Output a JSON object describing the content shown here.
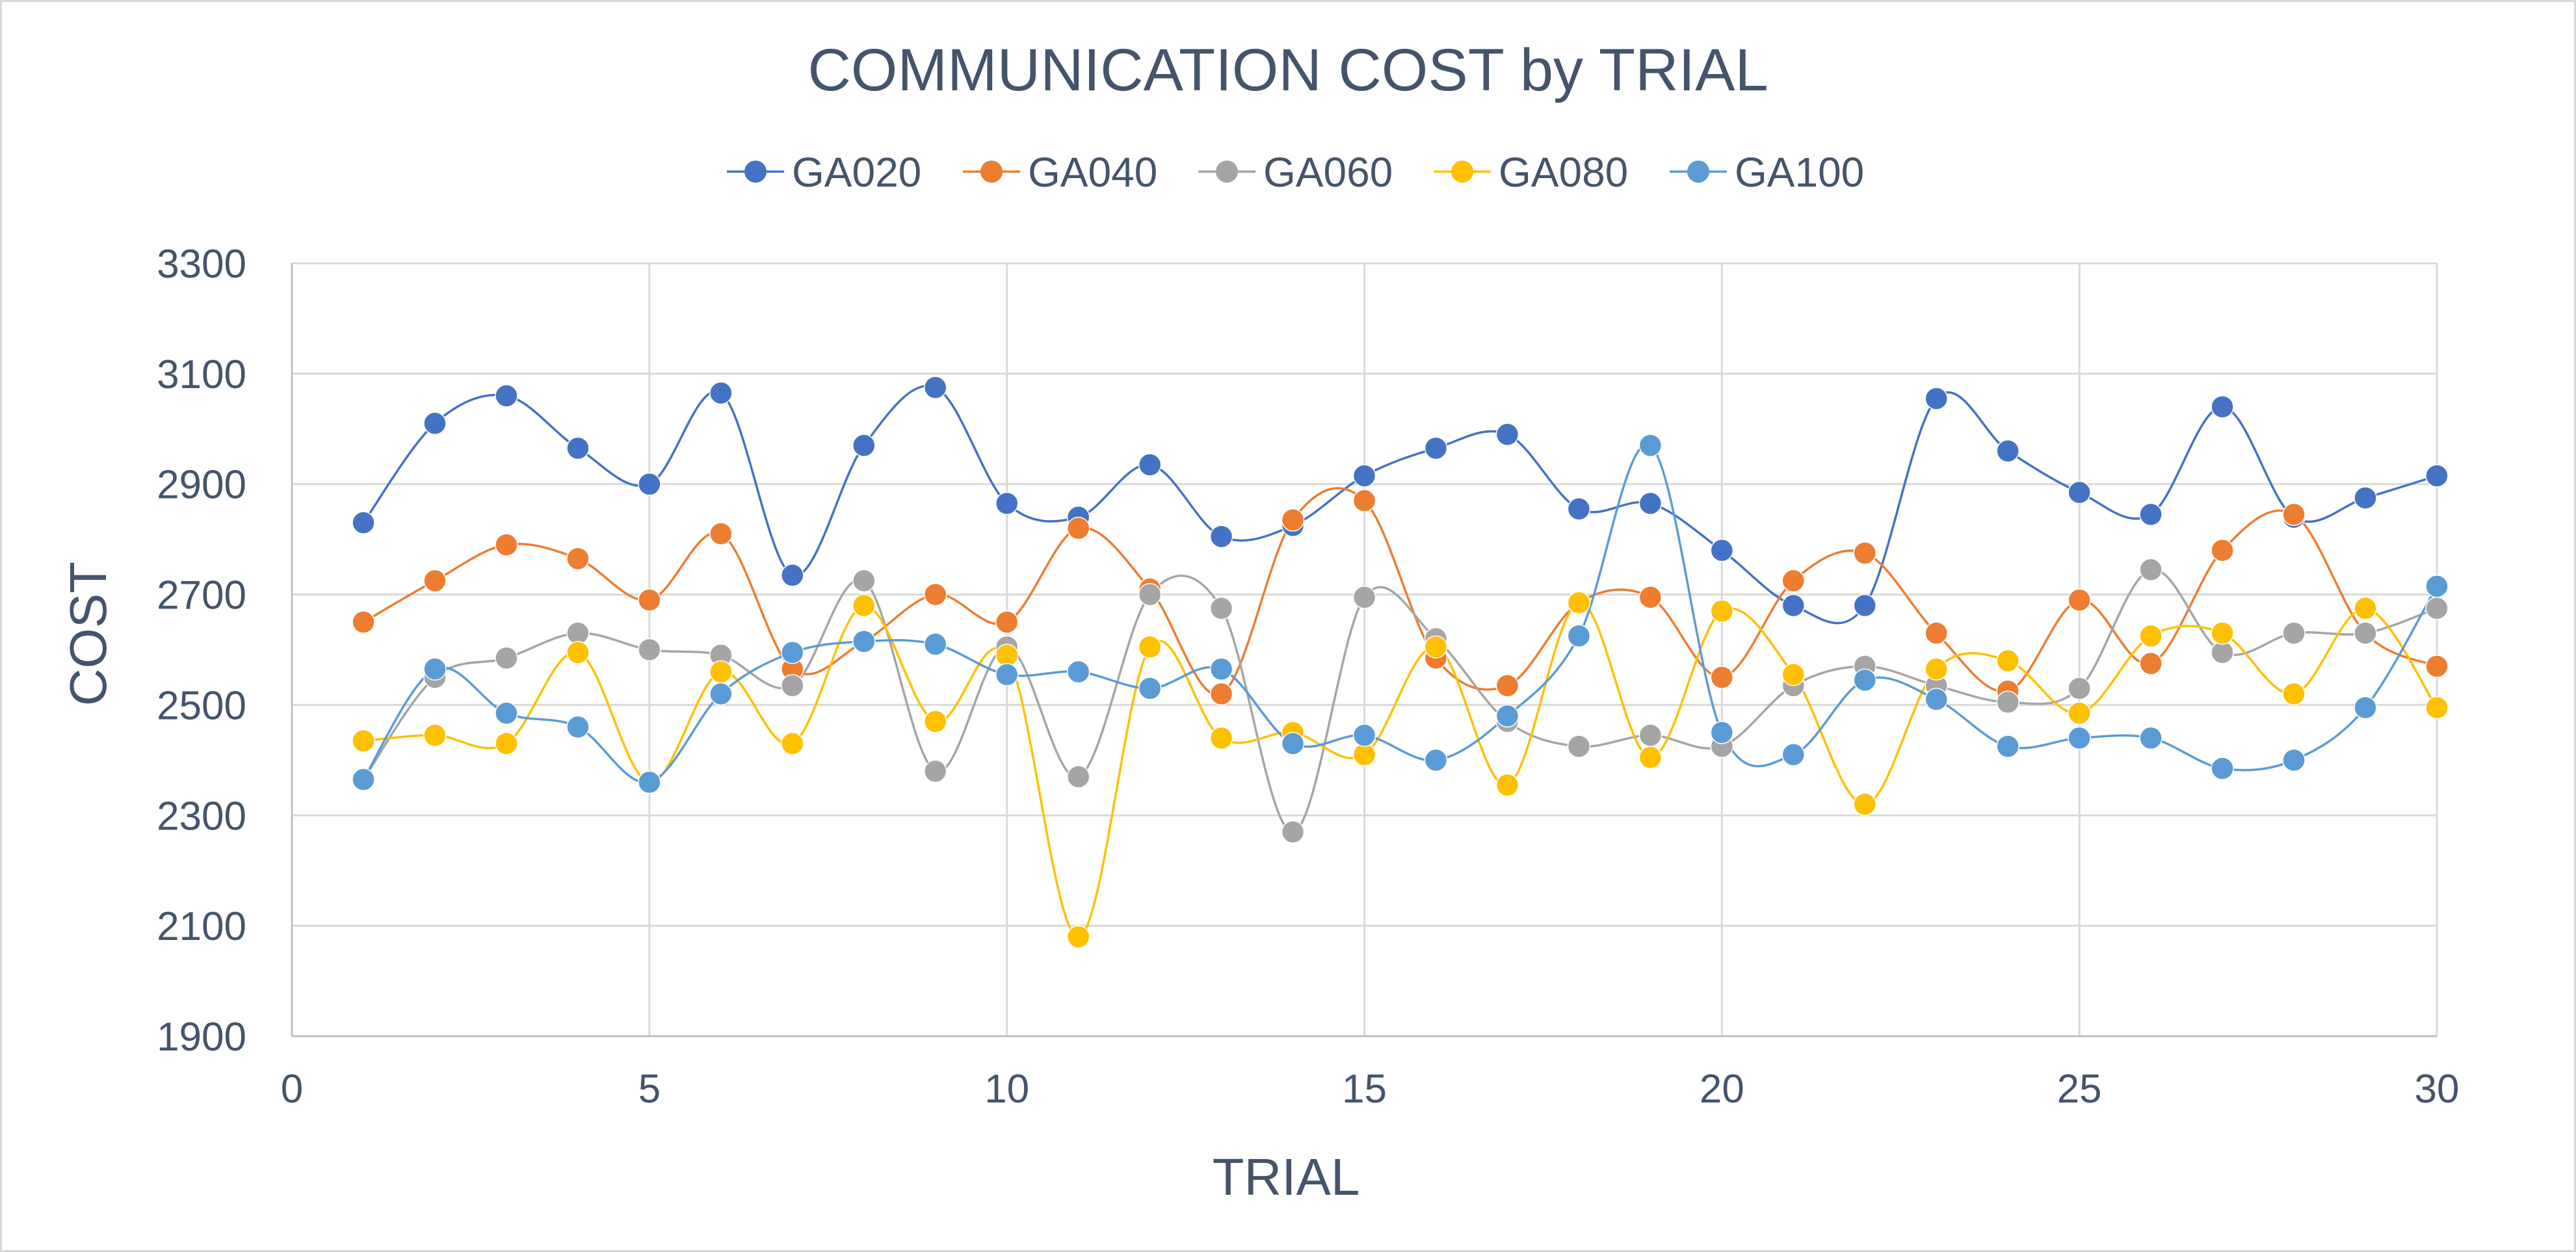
{
  "chart_data": {
    "type": "line",
    "smooth": true,
    "markers": true,
    "title": "COMMUNICATION COST by TRIAL",
    "xlabel": "TRIAL",
    "ylabel": "COST",
    "xlim": [
      0,
      30
    ],
    "ylim": [
      1900,
      3300
    ],
    "xticks": [
      0,
      5,
      10,
      15,
      20,
      25,
      30
    ],
    "yticks": [
      1900,
      2100,
      2300,
      2500,
      2700,
      2900,
      3100,
      3300
    ],
    "grid": true,
    "legend_position": "top",
    "x": [
      1,
      2,
      3,
      4,
      5,
      6,
      7,
      8,
      9,
      10,
      11,
      12,
      13,
      14,
      15,
      16,
      17,
      18,
      19,
      20,
      21,
      22,
      23,
      24,
      25,
      26,
      27,
      28,
      29,
      30
    ],
    "series": [
      {
        "name": "GA020",
        "color": "#4472c4",
        "values": [
          2830,
          3010,
          3060,
          2965,
          2900,
          3065,
          2735,
          2970,
          3075,
          2865,
          2840,
          2935,
          2805,
          2825,
          2915,
          2965,
          2990,
          2855,
          2865,
          2780,
          2680,
          2680,
          3055,
          2960,
          2885,
          2845,
          3040,
          2840,
          2875,
          2915
        ]
      },
      {
        "name": "GA040",
        "color": "#ed7d31",
        "values": [
          2650,
          2725,
          2790,
          2765,
          2690,
          2810,
          2565,
          2615,
          2700,
          2650,
          2820,
          2710,
          2520,
          2835,
          2870,
          2585,
          2535,
          2685,
          2695,
          2550,
          2725,
          2775,
          2630,
          2525,
          2690,
          2575,
          2780,
          2845,
          2630,
          2570
        ]
      },
      {
        "name": "GA060",
        "color": "#a5a5a5",
        "values": [
          2365,
          2550,
          2585,
          2630,
          2600,
          2590,
          2535,
          2725,
          2380,
          2605,
          2370,
          2700,
          2675,
          2270,
          2695,
          2620,
          2470,
          2425,
          2445,
          2425,
          2535,
          2570,
          2535,
          2505,
          2530,
          2745,
          2595,
          2630,
          2630,
          2675
        ]
      },
      {
        "name": "GA080",
        "color": "#ffc000",
        "values": [
          2435,
          2445,
          2430,
          2595,
          2360,
          2560,
          2430,
          2680,
          2470,
          2590,
          2080,
          2605,
          2440,
          2450,
          2410,
          2605,
          2355,
          2685,
          2405,
          2670,
          2555,
          2320,
          2565,
          2580,
          2485,
          2625,
          2630,
          2520,
          2675,
          2495
        ]
      },
      {
        "name": "GA100",
        "color": "#5b9bd5",
        "values": [
          2365,
          2565,
          2485,
          2460,
          2360,
          2520,
          2595,
          2615,
          2610,
          2555,
          2560,
          2530,
          2565,
          2430,
          2445,
          2400,
          2480,
          2625,
          2970,
          2450,
          2410,
          2545,
          2510,
          2425,
          2440,
          2440,
          2385,
          2400,
          2495,
          2715
        ]
      }
    ]
  }
}
